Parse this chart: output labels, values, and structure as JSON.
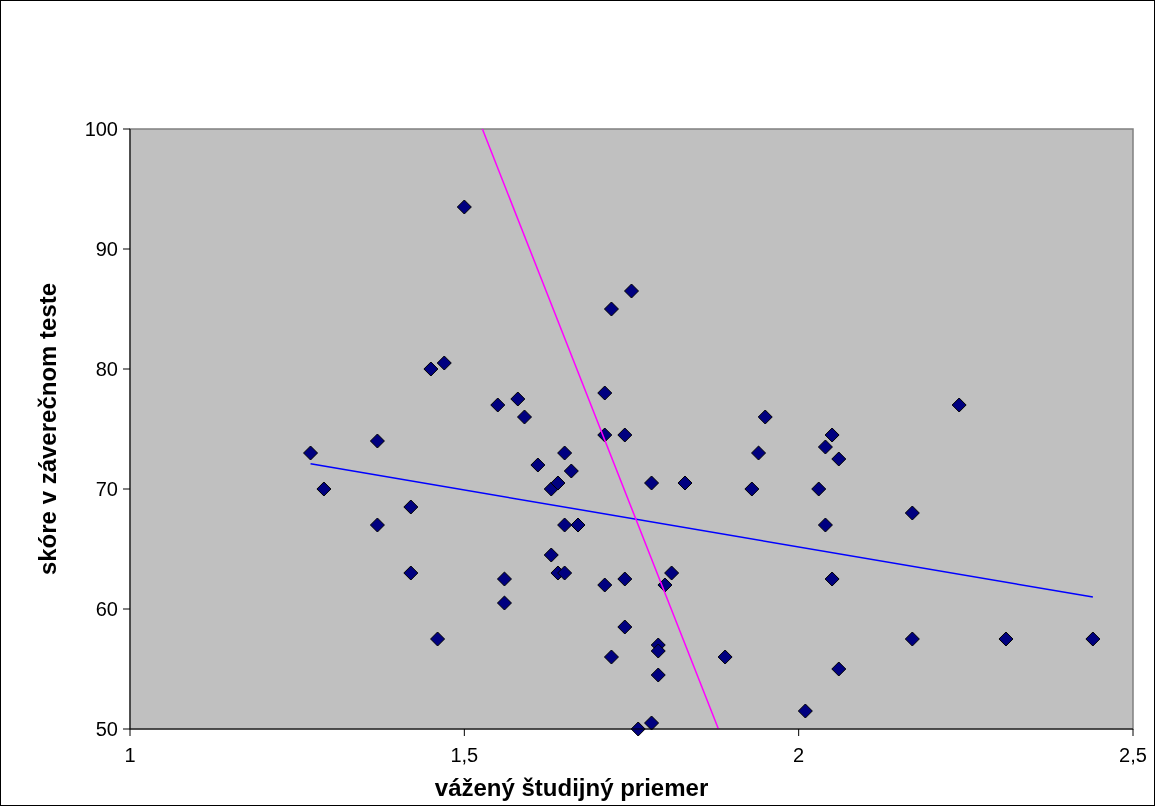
{
  "chart_data": {
    "type": "scatter",
    "xlabel": "vážený študijný priemer",
    "ylabel": "skóre v záverečnom teste",
    "xlim": [
      1,
      2.5
    ],
    "xticks": [
      1,
      {
        "value": 1.5,
        "label": "1,5"
      },
      2,
      {
        "value": 2.5,
        "label": "2,5"
      }
    ],
    "ylim": [
      50,
      100
    ],
    "yticks": [
      50,
      60,
      70,
      80,
      90,
      100
    ],
    "grid": false,
    "series": [
      {
        "type": "scatter",
        "color": "#000080",
        "marker": "diamond",
        "x": [
          1.27,
          1.29,
          1.37,
          1.37,
          1.42,
          1.42,
          1.45,
          1.46,
          1.47,
          1.5,
          1.55,
          1.56,
          1.56,
          1.58,
          1.59,
          1.61,
          1.63,
          1.63,
          1.64,
          1.64,
          1.65,
          1.65,
          1.65,
          1.66,
          1.67,
          1.71,
          1.71,
          1.71,
          1.72,
          1.72,
          1.74,
          1.74,
          1.74,
          1.75,
          1.76,
          1.78,
          1.78,
          1.79,
          1.79,
          1.79,
          1.8,
          1.81,
          1.83,
          1.89,
          1.93,
          1.94,
          1.95,
          2.01,
          2.03,
          2.04,
          2.04,
          2.05,
          2.05,
          2.06,
          2.06,
          2.17,
          2.17,
          2.24,
          2.31,
          2.44
        ],
        "values": [
          73,
          70,
          74,
          67,
          68.5,
          63,
          80,
          57.5,
          80.5,
          93.5,
          77,
          62.5,
          60.5,
          77.5,
          76,
          72,
          64.5,
          70,
          70.5,
          63,
          73,
          67,
          63,
          71.5,
          67,
          78,
          74.5,
          62,
          85,
          56,
          74.5,
          62.5,
          58.5,
          86.5,
          50,
          70.5,
          50.5,
          57,
          56.5,
          54.5,
          62,
          63,
          70.5,
          56,
          70,
          73,
          76,
          51.5,
          70,
          73.5,
          67,
          74.5,
          62.5,
          72.5,
          55,
          68,
          57.5,
          77,
          57.5,
          57.5
        ]
      },
      {
        "type": "line",
        "color": "#0000ff",
        "marker": "none",
        "x": [
          1.27,
          2.44
        ],
        "values": [
          72.1,
          61
        ]
      },
      {
        "type": "line",
        "color": "#ff00ff",
        "marker": "none",
        "x": [
          1.527,
          1.88
        ],
        "values": [
          100,
          50
        ]
      }
    ]
  }
}
